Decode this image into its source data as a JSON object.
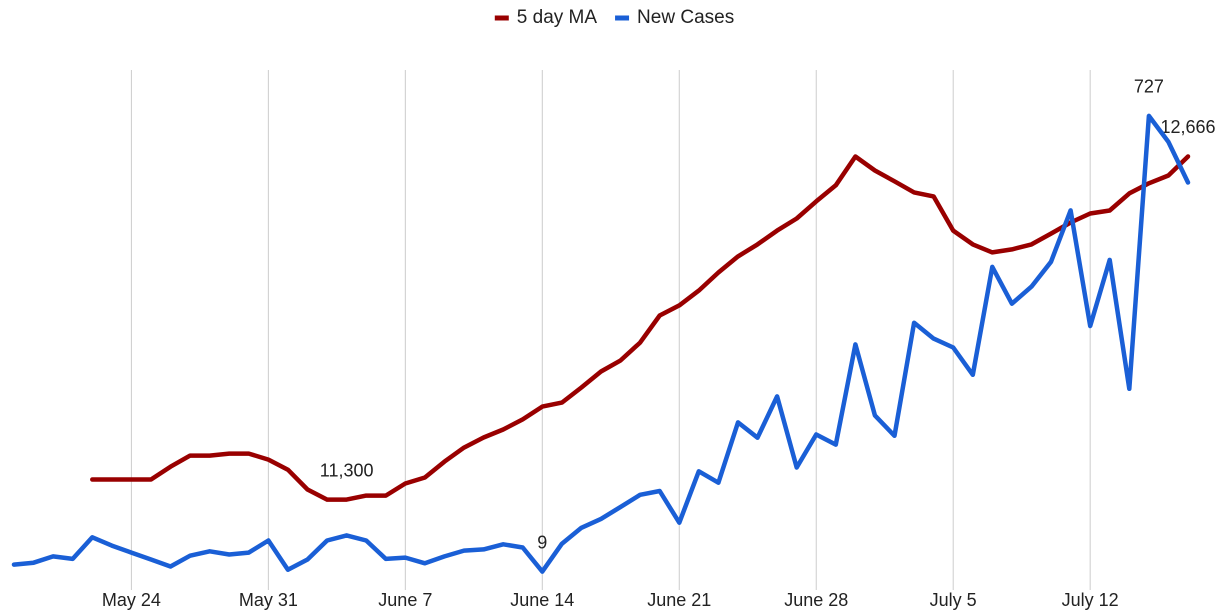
{
  "chart_data": {
    "type": "line",
    "categories": [
      null,
      null,
      null,
      null,
      null,
      null,
      "May 24",
      null,
      null,
      null,
      null,
      null,
      null,
      "May 31",
      null,
      null,
      null,
      null,
      null,
      null,
      "June 7",
      null,
      null,
      null,
      null,
      null,
      null,
      "June 14",
      null,
      null,
      null,
      null,
      null,
      null,
      "June 21",
      null,
      null,
      null,
      null,
      null,
      null,
      "June 28",
      null,
      null,
      null,
      null,
      null,
      null,
      "July 5",
      null,
      null,
      null,
      null,
      null,
      null,
      "July 12",
      null,
      null,
      null,
      null,
      null
    ],
    "series": [
      {
        "name": "5 day MA",
        "color": "#990000",
        "axis": "y",
        "values": [
          null,
          null,
          null,
          null,
          11380,
          11380,
          11380,
          11380,
          11431,
          11475,
          11475,
          11483,
          11483,
          11459,
          11419,
          11340,
          11300,
          11300,
          11316,
          11316,
          11364,
          11388,
          11451,
          11507,
          11547,
          11579,
          11619,
          11670,
          11686,
          11746,
          11810,
          11854,
          11925,
          12033,
          12073,
          12132,
          12204,
          12268,
          12316,
          12371,
          12419,
          12487,
          12551,
          12666,
          12610,
          12567,
          12523,
          12507,
          12371,
          12316,
          12284,
          12296,
          12316,
          12359,
          12403,
          12439,
          12451,
          12519,
          12559,
          12590,
          12666
        ],
        "value_labels": [
          null,
          null,
          null,
          null,
          null,
          null,
          null,
          null,
          null,
          null,
          null,
          null,
          null,
          null,
          null,
          null,
          null,
          "11,300",
          null,
          null,
          null,
          null,
          null,
          null,
          null,
          null,
          null,
          null,
          null,
          null,
          null,
          null,
          null,
          null,
          null,
          null,
          null,
          null,
          null,
          null,
          null,
          null,
          null,
          null,
          null,
          null,
          null,
          null,
          null,
          null,
          null,
          null,
          null,
          null,
          null,
          null,
          null,
          null,
          null,
          null,
          "12,666"
        ]
      },
      {
        "name": "New Cases",
        "color": "#1a5fd6",
        "axis": "y2",
        "values": [
          20,
          23,
          33,
          29,
          63,
          50,
          39,
          28,
          17,
          34,
          41,
          36,
          39,
          58,
          12,
          28,
          58,
          66,
          58,
          29,
          31,
          22,
          33,
          42,
          44,
          52,
          47,
          9,
          53,
          78,
          92,
          111,
          130,
          136,
          86,
          167,
          149,
          244,
          220,
          285,
          173,
          225,
          209,
          367,
          255,
          223,
          401,
          376,
          362,
          319,
          489,
          431,
          458,
          497,
          578,
          396,
          500,
          297,
          727,
          686,
          622
        ],
        "value_labels": [
          null,
          null,
          null,
          null,
          null,
          null,
          null,
          null,
          null,
          null,
          null,
          null,
          null,
          null,
          null,
          null,
          null,
          null,
          null,
          null,
          null,
          null,
          null,
          null,
          null,
          null,
          null,
          9,
          null,
          null,
          null,
          null,
          null,
          null,
          null,
          null,
          null,
          null,
          null,
          null,
          null,
          null,
          null,
          null,
          null,
          null,
          null,
          null,
          null,
          null,
          null,
          null,
          null,
          null,
          null,
          null,
          null,
          null,
          727,
          null,
          null
        ]
      }
    ],
    "ylim": [
      10940,
      13050
    ],
    "y2lim": [
      -20,
      815
    ],
    "grid": true,
    "legend": "top"
  }
}
